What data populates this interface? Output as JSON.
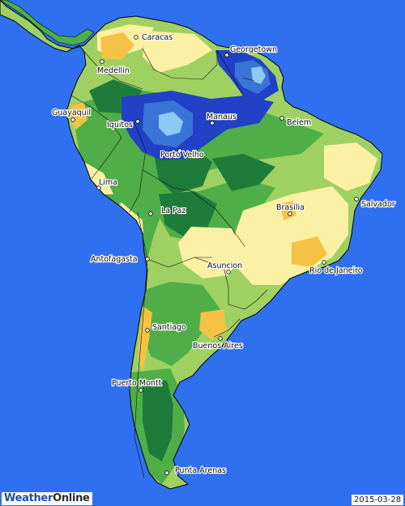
{
  "map": {
    "brand_part1": "Weather",
    "brand_part2": "Online",
    "date": "2015-03-28",
    "colors": {
      "ocean": "#2f70f0",
      "dry_orange": "#f4c245",
      "pale_yellow": "#fbf0a3",
      "light_green": "#9fd062",
      "mid_green": "#4fae47",
      "dark_green": "#1e7c3a",
      "blue": "#2141c6",
      "mid_blue": "#3a74d6",
      "light_blue": "#8ec8f4"
    },
    "cities": [
      "Caracas",
      "Georgetown",
      "Medellin",
      "Guayaquil",
      "Iquitos",
      "Manaus",
      "Belem",
      "Porto Velho",
      "Lima",
      "La Paz",
      "Brasilia",
      "Salvador",
      "Antofagasta",
      "Asuncion",
      "Rio de Janeiro",
      "Santiago",
      "Buenos Aires",
      "Puerto Montt",
      "Punta Arenas"
    ]
  }
}
